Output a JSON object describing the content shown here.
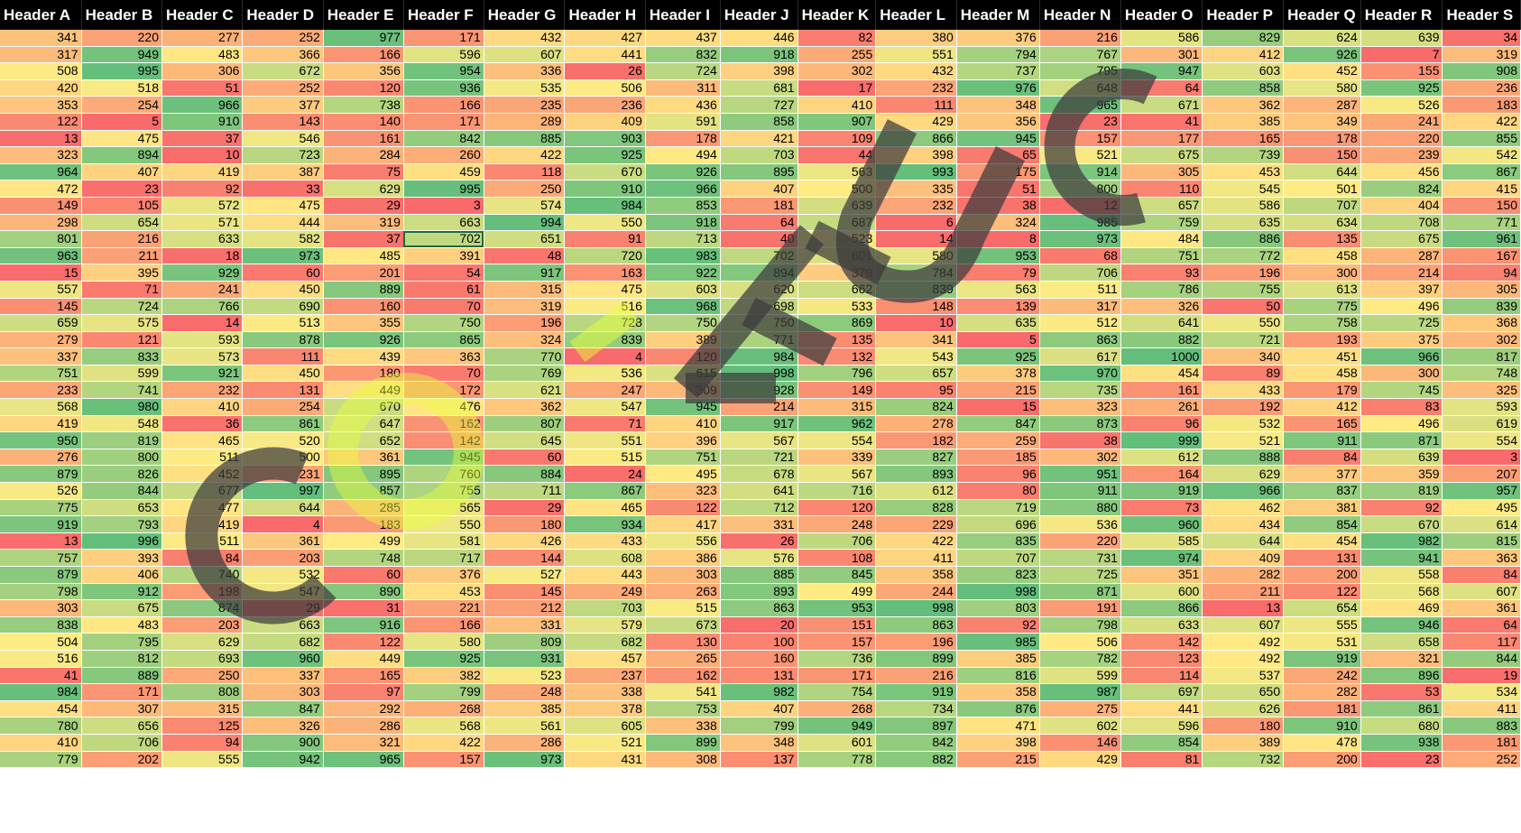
{
  "headers": [
    "Header A",
    "Header B",
    "Header C",
    "Header D",
    "Header E",
    "Header F",
    "Header G",
    "Header H",
    "Header I",
    "Header J",
    "Header K",
    "Header L",
    "Header M",
    "Header N",
    "Header O",
    "Header P",
    "Header Q",
    "Header R",
    "Header S"
  ],
  "rows": [
    [
      341,
      220,
      277,
      252,
      977,
      171,
      432,
      427,
      437,
      446,
      82,
      380,
      376,
      216,
      586,
      829,
      624,
      639,
      34
    ],
    [
      317,
      949,
      483,
      366,
      166,
      596,
      607,
      441,
      832,
      918,
      255,
      551,
      794,
      767,
      301,
      412,
      926,
      7,
      319
    ],
    [
      508,
      995,
      306,
      672,
      356,
      954,
      336,
      26,
      724,
      398,
      302,
      432,
      737,
      795,
      947,
      603,
      452,
      155,
      908
    ],
    [
      420,
      518,
      51,
      252,
      120,
      936,
      535,
      506,
      311,
      681,
      17,
      232,
      976,
      648,
      64,
      858,
      580,
      925,
      236
    ],
    [
      353,
      254,
      966,
      377,
      738,
      166,
      235,
      236,
      436,
      727,
      410,
      111,
      348,
      965,
      671,
      362,
      287,
      526,
      183
    ],
    [
      122,
      5,
      910,
      143,
      140,
      171,
      289,
      409,
      591,
      858,
      907,
      429,
      356,
      23,
      41,
      385,
      349,
      241,
      422
    ],
    [
      13,
      475,
      37,
      546,
      161,
      842,
      885,
      903,
      178,
      421,
      109,
      866,
      945,
      157,
      177,
      165,
      178,
      220,
      855
    ],
    [
      323,
      894,
      10,
      723,
      284,
      260,
      422,
      925,
      494,
      703,
      44,
      398,
      65,
      521,
      675,
      739,
      150,
      239,
      542
    ],
    [
      964,
      407,
      419,
      387,
      75,
      459,
      118,
      670,
      926,
      895,
      563,
      993,
      175,
      914,
      305,
      453,
      644,
      456,
      867
    ],
    [
      472,
      23,
      92,
      33,
      629,
      995,
      250,
      910,
      966,
      407,
      500,
      335,
      51,
      800,
      110,
      545,
      501,
      824,
      415
    ],
    [
      149,
      105,
      572,
      475,
      29,
      3,
      574,
      984,
      853,
      181,
      639,
      232,
      38,
      12,
      657,
      586,
      707,
      404,
      150
    ],
    [
      298,
      654,
      571,
      444,
      319,
      663,
      994,
      550,
      918,
      64,
      687,
      6,
      324,
      985,
      759,
      635,
      634,
      708,
      771
    ],
    [
      801,
      216,
      633,
      582,
      37,
      702,
      651,
      91,
      713,
      40,
      523,
      14,
      8,
      973,
      484,
      886,
      135,
      675,
      961
    ],
    [
      963,
      211,
      18,
      973,
      485,
      391,
      48,
      720,
      983,
      702,
      601,
      580,
      953,
      68,
      751,
      772,
      458,
      287,
      167
    ],
    [
      15,
      395,
      929,
      60,
      201,
      54,
      917,
      163,
      922,
      894,
      379,
      784,
      79,
      706,
      93,
      196,
      300,
      214,
      94
    ],
    [
      557,
      71,
      241,
      450,
      889,
      61,
      315,
      475,
      603,
      620,
      662,
      839,
      563,
      511,
      786,
      755,
      613,
      397,
      305
    ],
    [
      145,
      724,
      766,
      690,
      160,
      70,
      319,
      516,
      968,
      698,
      533,
      148,
      139,
      317,
      326,
      50,
      775,
      496,
      839
    ],
    [
      659,
      575,
      14,
      513,
      355,
      750,
      196,
      728,
      750,
      750,
      869,
      10,
      635,
      512,
      641,
      550,
      758,
      725,
      368
    ],
    [
      279,
      121,
      593,
      878,
      926,
      865,
      324,
      839,
      389,
      771,
      135,
      341,
      5,
      863,
      882,
      721,
      193,
      375,
      302
    ],
    [
      337,
      833,
      573,
      111,
      439,
      363,
      770,
      4,
      120,
      984,
      132,
      543,
      925,
      617,
      1000,
      340,
      451,
      966,
      817
    ],
    [
      751,
      599,
      921,
      450,
      180,
      70,
      769,
      536,
      615,
      998,
      796,
      657,
      378,
      970,
      454,
      89,
      458,
      300,
      748
    ],
    [
      233,
      741,
      232,
      131,
      449,
      172,
      621,
      247,
      309,
      928,
      149,
      95,
      215,
      735,
      161,
      433,
      179,
      745,
      325
    ],
    [
      568,
      980,
      410,
      254,
      670,
      476,
      362,
      547,
      945,
      214,
      315,
      824,
      15,
      323,
      261,
      192,
      412,
      83,
      593
    ],
    [
      419,
      548,
      36,
      861,
      647,
      162,
      807,
      71,
      410,
      917,
      962,
      278,
      847,
      873,
      96,
      532,
      165,
      496,
      619
    ],
    [
      950,
      819,
      465,
      520,
      652,
      142,
      645,
      551,
      396,
      567,
      554,
      182,
      259,
      38,
      999,
      521,
      911,
      871,
      554
    ],
    [
      276,
      800,
      511,
      500,
      361,
      945,
      60,
      515,
      751,
      721,
      339,
      827,
      185,
      302,
      612,
      888,
      84,
      639,
      3
    ],
    [
      879,
      826,
      452,
      231,
      895,
      760,
      884,
      24,
      495,
      678,
      567,
      893,
      96,
      951,
      164,
      629,
      377,
      359,
      207
    ],
    [
      526,
      844,
      677,
      997,
      857,
      755,
      711,
      867,
      323,
      641,
      716,
      612,
      80,
      911,
      919,
      966,
      837,
      819,
      957
    ],
    [
      775,
      653,
      477,
      644,
      285,
      565,
      29,
      465,
      122,
      712,
      120,
      828,
      719,
      880,
      73,
      462,
      381,
      92,
      495
    ],
    [
      919,
      793,
      419,
      4,
      183,
      550,
      180,
      934,
      417,
      331,
      248,
      229,
      696,
      536,
      960,
      434,
      854,
      670,
      614
    ],
    [
      13,
      996,
      511,
      361,
      499,
      581,
      426,
      433,
      556,
      26,
      706,
      422,
      835,
      220,
      585,
      644,
      454,
      982,
      815
    ],
    [
      757,
      393,
      84,
      203,
      748,
      717,
      144,
      608,
      386,
      576,
      108,
      411,
      707,
      731,
      974,
      409,
      131,
      941,
      363
    ],
    [
      879,
      406,
      740,
      532,
      60,
      376,
      527,
      443,
      303,
      885,
      845,
      358,
      823,
      725,
      351,
      282,
      200,
      558,
      84
    ],
    [
      798,
      912,
      198,
      547,
      890,
      453,
      145,
      249,
      263,
      893,
      499,
      244,
      998,
      871,
      600,
      211,
      122,
      568,
      607
    ],
    [
      303,
      675,
      874,
      29,
      31,
      221,
      212,
      703,
      515,
      863,
      953,
      998,
      803,
      191,
      866,
      13,
      654,
      469,
      361
    ],
    [
      838,
      483,
      203,
      663,
      916,
      166,
      331,
      579,
      673,
      20,
      151,
      863,
      92,
      798,
      633,
      607,
      555,
      946,
      64
    ],
    [
      504,
      795,
      629,
      682,
      122,
      580,
      809,
      682,
      130,
      100,
      157,
      196,
      985,
      506,
      142,
      492,
      531,
      658,
      117
    ],
    [
      516,
      812,
      693,
      960,
      449,
      925,
      931,
      457,
      265,
      160,
      736,
      899,
      385,
      782,
      123,
      492,
      919,
      321,
      844
    ],
    [
      41,
      889,
      250,
      337,
      165,
      382,
      523,
      237,
      162,
      131,
      171,
      216,
      816,
      599,
      114,
      537,
      242,
      896,
      19
    ],
    [
      984,
      171,
      808,
      303,
      97,
      799,
      248,
      338,
      541,
      982,
      754,
      919,
      358,
      987,
      697,
      650,
      282,
      53,
      534
    ],
    [
      454,
      307,
      315,
      847,
      292,
      268,
      385,
      378,
      753,
      407,
      268,
      734,
      876,
      275,
      441,
      626,
      181,
      861,
      411
    ],
    [
      780,
      656,
      125,
      326,
      286,
      568,
      561,
      605,
      338,
      799,
      949,
      897,
      471,
      602,
      596,
      180,
      910,
      680,
      883
    ],
    [
      410,
      706,
      94,
      900,
      321,
      422,
      286,
      521,
      899,
      348,
      601,
      842,
      398,
      146,
      854,
      389,
      478,
      938,
      181
    ],
    [
      779,
      202,
      555,
      942,
      965,
      157,
      973,
      431,
      308,
      137,
      778,
      882,
      215,
      429,
      81,
      732,
      200,
      23,
      252
    ]
  ],
  "selected_cell": {
    "row": 12,
    "col": 5
  },
  "watermark": {
    "text": "CONFUSE",
    "colors": {
      "dark": "#3c3c3c",
      "light": "#e6ff3c"
    }
  },
  "scale_colors": {
    "low": "#f8696b",
    "mid": "#ffeb84",
    "high": "#63be7b"
  }
}
